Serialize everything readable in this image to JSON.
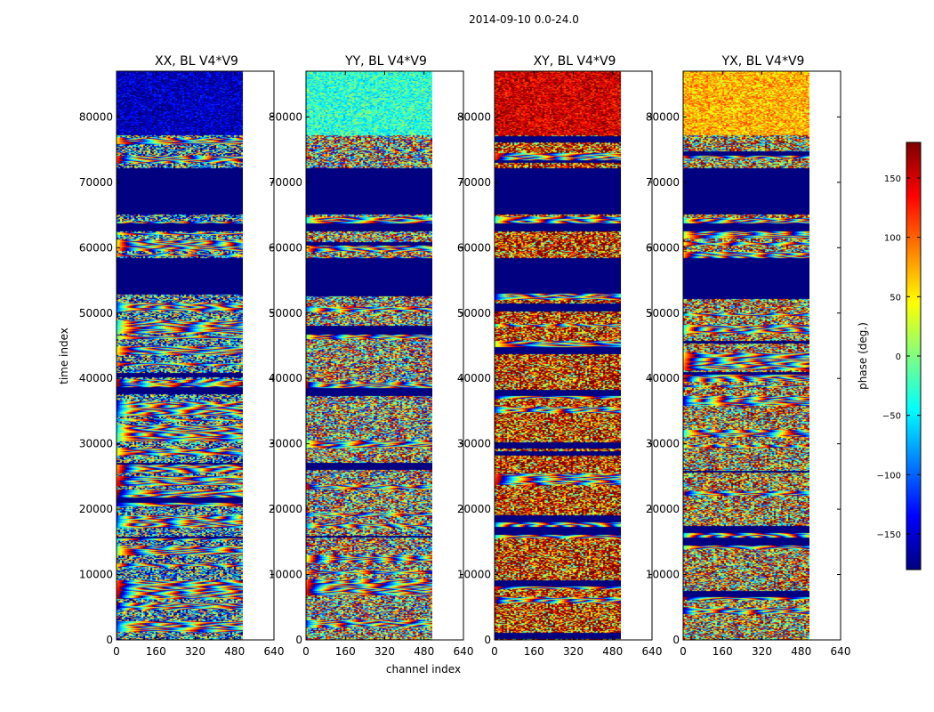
{
  "chart_data": {
    "type": "heatmap",
    "suptitle": "2014-09-10 0.0-24.0",
    "xlabel": "channel index",
    "ylabel": "time index",
    "xlim": [
      0,
      640
    ],
    "ylim": [
      0,
      87000
    ],
    "xticks": [
      0,
      160,
      320,
      480,
      640
    ],
    "yticks": [
      0,
      10000,
      20000,
      30000,
      40000,
      50000,
      60000,
      70000,
      80000
    ],
    "data_channel_extent": [
      0,
      512
    ],
    "panels": [
      {
        "title": "XX, BL V4*V9",
        "top_band_phase_deg": -160,
        "mid_band_phase_deg": -60
      },
      {
        "title": "YY, BL V4*V9",
        "top_band_phase_deg": -30,
        "mid_band_phase_deg": 30
      },
      {
        "title": "XY, BL V4*V9",
        "top_band_phase_deg": 150,
        "mid_band_phase_deg": 140
      },
      {
        "title": "YX, BL V4*V9",
        "top_band_phase_deg": 70,
        "mid_band_phase_deg": 60
      }
    ],
    "flagged_time_ranges": [
      [
        53000,
        58500
      ],
      [
        62500,
        63800
      ],
      [
        65100,
        72200
      ]
    ],
    "colorbar": {
      "label": "phase (deg.)",
      "range": [
        -180,
        180
      ],
      "ticks": [
        -150,
        -100,
        -50,
        0,
        50,
        100,
        150
      ],
      "colormap": "jet"
    }
  },
  "colors": {
    "jet": [
      "#00007f",
      "#0000ff",
      "#007fff",
      "#00ffff",
      "#7fff7f",
      "#ffff00",
      "#ff7f00",
      "#ff0000",
      "#7f0000"
    ],
    "flagged": "#000080"
  }
}
